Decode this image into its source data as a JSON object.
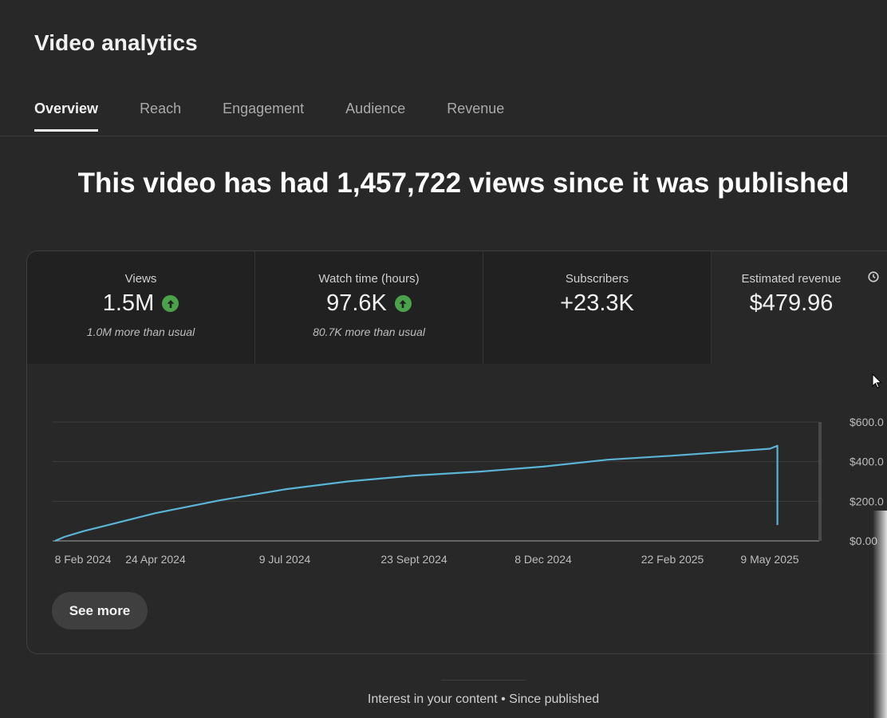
{
  "header": {
    "title": "Video analytics"
  },
  "tabs": [
    {
      "label": "Overview",
      "active": true
    },
    {
      "label": "Reach",
      "active": false
    },
    {
      "label": "Engagement",
      "active": false
    },
    {
      "label": "Audience",
      "active": false
    },
    {
      "label": "Revenue",
      "active": false
    }
  ],
  "headline": "This video has had 1,457,722 views since it was published",
  "metrics": [
    {
      "label": "Views",
      "value": "1.5M",
      "trend_icon": "arrow-up-icon",
      "sub": "1.0M more than usual"
    },
    {
      "label": "Watch time (hours)",
      "value": "97.6K",
      "trend_icon": "arrow-up-icon",
      "sub": "80.7K more than usual"
    },
    {
      "label": "Subscribers",
      "value": "+23.3K",
      "sub": ""
    },
    {
      "label": "Estimated revenue",
      "value": "$479.96",
      "info_icon": "clock-icon",
      "sub": ""
    }
  ],
  "chart_data": {
    "type": "line",
    "title": "",
    "xlabel": "",
    "ylabel": "",
    "x_tick_labels": [
      "8 Feb 2024",
      "24 Apr 2024",
      "9 Jul 2024",
      "23 Sept 2024",
      "8 Dec 2024",
      "22 Feb 2025",
      "9 May 2025"
    ],
    "y_tick_labels": [
      "$600.0",
      "$400.0",
      "$200.0",
      "$0.00"
    ],
    "ylim": [
      0,
      600
    ],
    "grid": true,
    "line_color": "#5ab4d6",
    "series": [
      {
        "x": [
          "8 Feb 2024",
          "15 Feb 2024",
          "1 Mar 2024",
          "24 Apr 2024",
          "1 Jun 2024",
          "9 Jul 2024",
          "15 Aug 2024",
          "23 Sept 2024",
          "1 Nov 2024",
          "8 Dec 2024",
          "15 Jan 2025",
          "22 Feb 2025",
          "9 May 2025",
          "15 May 2025"
        ],
        "values": [
          0,
          20,
          50,
          140,
          205,
          260,
          300,
          330,
          350,
          375,
          410,
          430,
          465,
          480
        ]
      }
    ]
  },
  "see_more_label": "See more",
  "footer": "Interest in your content • Since published"
}
